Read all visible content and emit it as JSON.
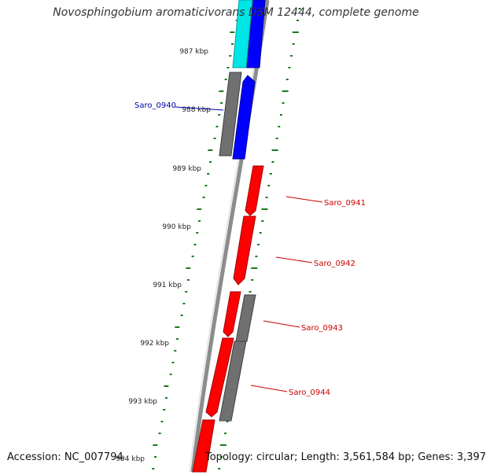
{
  "title": "Novosphingobium aromaticivorans DSM 12444, complete genome",
  "accession": "Accession: NC_007794",
  "topology": "Topology: circular; Length: 3,561,584 bp; Genes: 3,397",
  "colors": {
    "backbone": "#8c8c8c",
    "tick": "#1a7a1a",
    "label_blue": "#0000aa",
    "label_red": "#cc0000",
    "gene_red": "#ff0000",
    "gene_blue": "#0000ff",
    "gene_cyan": "#00e5e5",
    "gene_gray": "#707070"
  },
  "kbp_labels": [
    "987 kbp",
    "988 kbp",
    "989 kbp",
    "990 kbp",
    "991 kbp",
    "992 kbp",
    "993 kbp",
    "994 kbp"
  ],
  "gene_labels": [
    {
      "text": "Saro_0940",
      "color": "blue"
    },
    {
      "text": "Saro_0941",
      "color": "red"
    },
    {
      "text": "Saro_0942",
      "color": "red"
    },
    {
      "text": "Saro_0943",
      "color": "red"
    },
    {
      "text": "Saro_0944",
      "color": "red"
    }
  ]
}
